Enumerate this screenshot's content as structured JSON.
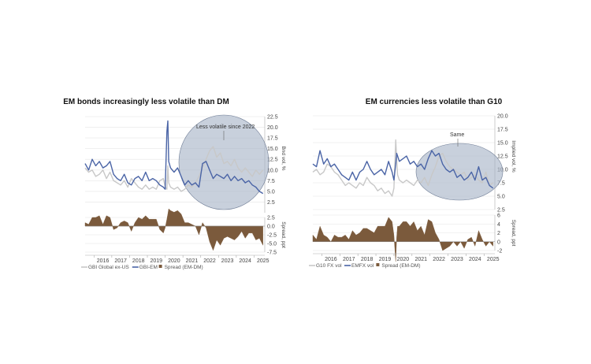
{
  "chart_data": [
    {
      "type": "line",
      "title": "EM bonds increasingly less volatile than DM",
      "ylabel": "Bnd vol, %",
      "ylabel2": "Spread, ppt",
      "x_ticks": [
        "2016",
        "2017",
        "2018",
        "2019",
        "2020",
        "2021",
        "2022",
        "2023",
        "2024",
        "2025"
      ],
      "xlim": [
        2015.5,
        2025.6
      ],
      "ylim": [
        0,
        22.5
      ],
      "y_ticks": [
        "22.5",
        "20.0",
        "17.5",
        "15.0",
        "12.5",
        "10.0",
        "7.5",
        "5.0",
        "2.5"
      ],
      "y_tick_values": [
        22.5,
        20.0,
        17.5,
        15.0,
        12.5,
        10.0,
        7.5,
        5.0,
        2.5
      ],
      "ylim2": [
        -7.5,
        2.5
      ],
      "y2_ticks": [
        "2.5",
        "0.0",
        "-2.5",
        "-5.0",
        "-7.5"
      ],
      "y2_tick_values": [
        2.5,
        0.0,
        -2.5,
        -5.0,
        -7.5
      ],
      "annotation": "Less volatile since 2022",
      "series": [
        {
          "name": "GBI Global ex-US",
          "color": "#c8c8c8",
          "x": [
            2015.5,
            2015.7,
            2015.9,
            2016.1,
            2016.3,
            2016.5,
            2016.7,
            2016.9,
            2017.1,
            2017.3,
            2017.5,
            2017.7,
            2017.9,
            2018.1,
            2018.3,
            2018.5,
            2018.7,
            2018.9,
            2019.1,
            2019.3,
            2019.5,
            2019.7,
            2019.9,
            2020.0,
            2020.1,
            2020.15,
            2020.2,
            2020.3,
            2020.5,
            2020.7,
            2020.9,
            2021.1,
            2021.3,
            2021.5,
            2021.7,
            2021.9,
            2022.1,
            2022.3,
            2022.5,
            2022.7,
            2022.9,
            2023.1,
            2023.3,
            2023.5,
            2023.7,
            2023.9,
            2024.1,
            2024.3,
            2024.5,
            2024.7,
            2024.9,
            2025.1,
            2025.3,
            2025.5
          ],
          "values": [
            10.5,
            9.5,
            10.0,
            8.5,
            9.0,
            10.0,
            8.0,
            9.5,
            7.5,
            7.0,
            6.5,
            7.5,
            6.0,
            8.0,
            7.0,
            6.0,
            5.5,
            6.5,
            5.5,
            6.0,
            5.5,
            7.5,
            8.0,
            6.0,
            5.5,
            11.0,
            7.0,
            6.0,
            5.5,
            6.0,
            5.0,
            5.5,
            6.5,
            6.0,
            7.0,
            8.5,
            10.5,
            12.5,
            14.5,
            15.5,
            13.0,
            14.0,
            11.5,
            12.0,
            11.0,
            12.5,
            10.5,
            9.5,
            10.5,
            9.5,
            8.5,
            10.0,
            9.0,
            10.0
          ]
        },
        {
          "name": "GBI-EM",
          "color": "#4a64a6",
          "x": [
            2015.5,
            2015.7,
            2015.9,
            2016.1,
            2016.3,
            2016.5,
            2016.7,
            2016.9,
            2017.1,
            2017.3,
            2017.5,
            2017.7,
            2017.9,
            2018.1,
            2018.3,
            2018.5,
            2018.7,
            2018.9,
            2019.1,
            2019.3,
            2019.5,
            2019.7,
            2019.9,
            2020.0,
            2020.1,
            2020.15,
            2020.2,
            2020.3,
            2020.5,
            2020.7,
            2020.9,
            2021.1,
            2021.3,
            2021.5,
            2021.7,
            2021.9,
            2022.1,
            2022.3,
            2022.5,
            2022.7,
            2022.9,
            2023.1,
            2023.3,
            2023.5,
            2023.7,
            2023.9,
            2024.1,
            2024.3,
            2024.5,
            2024.7,
            2024.9,
            2025.1,
            2025.3,
            2025.5
          ],
          "values": [
            11.5,
            10.0,
            12.5,
            11.0,
            12.0,
            10.5,
            11.0,
            12.0,
            9.0,
            8.0,
            7.5,
            9.0,
            7.0,
            6.5,
            8.0,
            8.5,
            7.5,
            9.5,
            7.5,
            8.0,
            7.5,
            6.5,
            6.0,
            5.5,
            19.0,
            21.5,
            12.0,
            10.5,
            9.5,
            10.5,
            8.5,
            6.5,
            7.5,
            6.5,
            7.0,
            6.0,
            11.5,
            12.0,
            10.0,
            8.0,
            9.0,
            8.5,
            8.0,
            9.0,
            7.5,
            8.5,
            7.5,
            8.0,
            7.0,
            7.5,
            6.5,
            6.0,
            5.0,
            4.5
          ]
        }
      ],
      "spread": {
        "name": "Spread (EM-DM)",
        "color": "#7b5a3c",
        "x": [
          2015.5,
          2015.7,
          2015.9,
          2016.1,
          2016.3,
          2016.5,
          2016.7,
          2016.9,
          2017.1,
          2017.3,
          2017.5,
          2017.7,
          2017.9,
          2018.1,
          2018.3,
          2018.5,
          2018.7,
          2018.9,
          2019.1,
          2019.3,
          2019.5,
          2019.7,
          2019.9,
          2020.0,
          2020.1,
          2020.15,
          2020.2,
          2020.3,
          2020.5,
          2020.7,
          2020.9,
          2021.1,
          2021.3,
          2021.5,
          2021.7,
          2021.9,
          2022.1,
          2022.3,
          2022.5,
          2022.7,
          2022.9,
          2023.1,
          2023.3,
          2023.5,
          2023.7,
          2023.9,
          2024.1,
          2024.3,
          2024.5,
          2024.7,
          2024.9,
          2025.1,
          2025.3,
          2025.5
        ],
        "values": [
          1.0,
          0.5,
          2.5,
          2.5,
          3.0,
          0.5,
          3.0,
          2.5,
          -1.0,
          -0.5,
          1.0,
          1.5,
          1.0,
          -1.5,
          1.0,
          2.5,
          2.0,
          3.0,
          2.0,
          2.0,
          2.0,
          -1.0,
          -2.0,
          -0.5,
          2.0,
          3.5,
          5.0,
          4.5,
          4.0,
          4.5,
          3.5,
          1.0,
          1.0,
          0.5,
          0.0,
          -2.5,
          1.0,
          -0.5,
          -4.5,
          -7.0,
          -4.0,
          -5.5,
          -3.5,
          -3.0,
          -3.5,
          -4.0,
          -3.0,
          -1.5,
          -3.5,
          -2.0,
          -2.0,
          -4.0,
          -3.5,
          -5.5
        ]
      },
      "legend": [
        "GBI Global ex-US",
        "GBI-EM",
        "Spread (EM-DM)"
      ]
    },
    {
      "type": "line",
      "title": "EM currencies less volatile than G10",
      "ylabel": "Implied vol, %",
      "ylabel2": "Spread, ppt",
      "x_ticks": [
        "2016",
        "2017",
        "2018",
        "2019",
        "2020",
        "2021",
        "2022",
        "2023",
        "2024",
        "2025"
      ],
      "xlim": [
        2015.5,
        2025.6
      ],
      "ylim": [
        2.5,
        20.0
      ],
      "y_ticks": [
        "20.0",
        "17.5",
        "15.0",
        "12.5",
        "10.0",
        "7.5",
        "5.0",
        "2.5"
      ],
      "y_tick_values": [
        20.0,
        17.5,
        15.0,
        12.5,
        10.0,
        7.5,
        5.0,
        2.5
      ],
      "ylim2": [
        -2,
        6
      ],
      "y2_ticks": [
        "6",
        "4",
        "2",
        "0",
        "-2"
      ],
      "y2_tick_values": [
        6,
        4,
        2,
        0,
        -2
      ],
      "annotation": "Same",
      "series": [
        {
          "name": "G10 FX vol",
          "color": "#c8c8c8",
          "x": [
            2015.5,
            2015.7,
            2015.9,
            2016.1,
            2016.3,
            2016.5,
            2016.7,
            2016.9,
            2017.1,
            2017.3,
            2017.5,
            2017.7,
            2017.9,
            2018.1,
            2018.3,
            2018.5,
            2018.7,
            2018.9,
            2019.1,
            2019.3,
            2019.5,
            2019.7,
            2019.9,
            2020.0,
            2020.1,
            2020.15,
            2020.2,
            2020.3,
            2020.5,
            2020.7,
            2020.9,
            2021.1,
            2021.3,
            2021.5,
            2021.7,
            2021.9,
            2022.1,
            2022.3,
            2022.5,
            2022.7,
            2022.9,
            2023.1,
            2023.3,
            2023.5,
            2023.7,
            2023.9,
            2024.1,
            2024.3,
            2024.5,
            2024.7,
            2024.9,
            2025.1,
            2025.3,
            2025.5
          ],
          "values": [
            9.5,
            10.0,
            9.0,
            9.5,
            11.0,
            10.5,
            9.5,
            9.0,
            8.0,
            7.0,
            7.5,
            7.0,
            6.5,
            7.5,
            7.0,
            8.5,
            7.5,
            7.0,
            6.0,
            6.5,
            5.5,
            6.0,
            5.0,
            6.5,
            15.5,
            12.0,
            9.0,
            8.0,
            7.5,
            8.0,
            7.5,
            7.0,
            8.0,
            7.5,
            8.5,
            7.0,
            9.0,
            10.5,
            12.5,
            13.0,
            11.5,
            10.5,
            10.0,
            9.5,
            9.0,
            9.5,
            8.0,
            8.5,
            9.0,
            8.0,
            7.5,
            9.5,
            7.0,
            7.5
          ]
        },
        {
          "name": "EMFX vol",
          "color": "#4a64a6",
          "x": [
            2015.5,
            2015.7,
            2015.9,
            2016.1,
            2016.3,
            2016.5,
            2016.7,
            2016.9,
            2017.1,
            2017.3,
            2017.5,
            2017.7,
            2017.9,
            2018.1,
            2018.3,
            2018.5,
            2018.7,
            2018.9,
            2019.1,
            2019.3,
            2019.5,
            2019.7,
            2019.9,
            2020.0,
            2020.1,
            2020.15,
            2020.2,
            2020.3,
            2020.5,
            2020.7,
            2020.9,
            2021.1,
            2021.3,
            2021.5,
            2021.7,
            2021.9,
            2022.1,
            2022.3,
            2022.5,
            2022.7,
            2022.9,
            2023.1,
            2023.3,
            2023.5,
            2023.7,
            2023.9,
            2024.1,
            2024.3,
            2024.5,
            2024.7,
            2024.9,
            2025.1,
            2025.3,
            2025.5
          ],
          "values": [
            11.0,
            10.5,
            13.5,
            11.0,
            12.0,
            10.5,
            11.0,
            10.0,
            9.0,
            8.5,
            8.0,
            9.5,
            8.0,
            9.5,
            10.0,
            11.5,
            10.0,
            9.0,
            9.5,
            10.0,
            9.0,
            11.5,
            9.5,
            8.0,
            11.0,
            13.0,
            12.5,
            11.5,
            12.0,
            12.5,
            11.0,
            11.5,
            10.5,
            11.0,
            10.0,
            12.0,
            13.5,
            12.5,
            13.0,
            11.0,
            10.0,
            9.5,
            10.0,
            8.5,
            9.0,
            8.0,
            8.5,
            9.5,
            8.0,
            10.5,
            8.0,
            8.5,
            7.0,
            6.5
          ]
        }
      ],
      "spread": {
        "name": "Spread (EM-DM)",
        "color": "#7b5a3c",
        "x": [
          2015.5,
          2015.7,
          2015.9,
          2016.1,
          2016.3,
          2016.5,
          2016.7,
          2016.9,
          2017.1,
          2017.3,
          2017.5,
          2017.7,
          2017.9,
          2018.1,
          2018.3,
          2018.5,
          2018.7,
          2018.9,
          2019.1,
          2019.3,
          2019.5,
          2019.7,
          2019.9,
          2020.0,
          2020.1,
          2020.15,
          2020.2,
          2020.3,
          2020.5,
          2020.7,
          2020.9,
          2021.1,
          2021.3,
          2021.5,
          2021.7,
          2021.9,
          2022.1,
          2022.3,
          2022.5,
          2022.7,
          2022.9,
          2023.1,
          2023.3,
          2023.5,
          2023.7,
          2023.9,
          2024.1,
          2024.3,
          2024.5,
          2024.7,
          2024.9,
          2025.1,
          2025.3,
          2025.5
        ],
        "values": [
          1.5,
          0.5,
          3.5,
          1.5,
          1.0,
          0.0,
          1.5,
          1.0,
          1.0,
          1.5,
          0.5,
          2.5,
          1.5,
          2.0,
          3.0,
          3.0,
          2.5,
          2.0,
          3.5,
          3.5,
          3.5,
          5.5,
          4.5,
          1.5,
          -4.5,
          1.0,
          3.5,
          3.5,
          4.5,
          4.5,
          3.5,
          4.5,
          2.5,
          3.5,
          1.5,
          5.0,
          4.5,
          2.0,
          0.5,
          -2.0,
          -1.5,
          -1.0,
          0.0,
          -1.0,
          0.0,
          -1.5,
          0.5,
          1.0,
          -1.0,
          2.5,
          0.5,
          -1.0,
          0.0,
          -1.0
        ]
      },
      "legend": [
        "G10 FX vol",
        "EMFX vol",
        "Spread (EM-DM)"
      ]
    }
  ]
}
